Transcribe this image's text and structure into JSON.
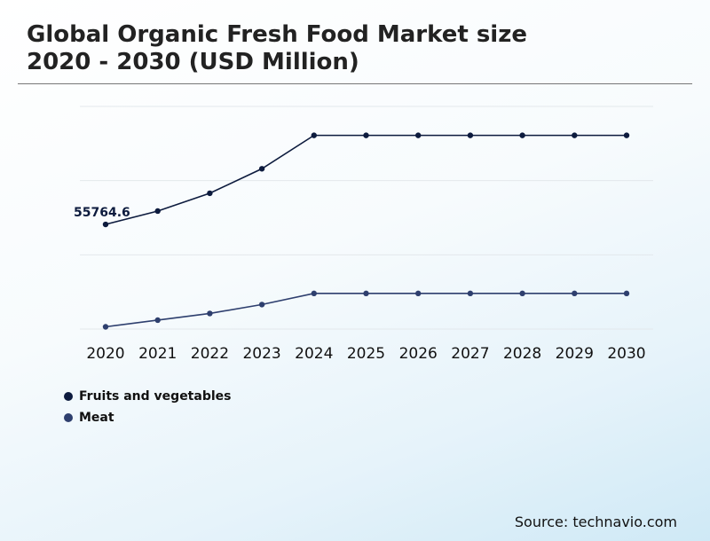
{
  "title": {
    "line1": "Global Organic Fresh Food Market size",
    "line2": "2020 - 2030 (USD Million)"
  },
  "source": "Source: technavio.com",
  "chart_data": {
    "type": "line",
    "title": "Global Organic Fresh Food Market size 2020 - 2030 (USD Million)",
    "x": [
      "2020",
      "2021",
      "2022",
      "2023",
      "2024",
      "2025",
      "2026",
      "2027",
      "2028",
      "2029",
      "2030"
    ],
    "xlabel": "",
    "ylabel": "",
    "ylim": [
      0,
      100
    ],
    "y_tick_labels_shown": false,
    "grid": "horizontal",
    "legend_position": "bottom-left",
    "series": [
      {
        "name": "Fruits and vegetables",
        "color": "#0d1b3e",
        "values": [
          47,
          53,
          61,
          72,
          87,
          87,
          87,
          87,
          87,
          87,
          87
        ]
      },
      {
        "name": "Meat",
        "color": "#2e3f6e",
        "values": [
          1,
          4,
          7,
          11,
          16,
          16,
          16,
          16,
          16,
          16,
          16
        ]
      }
    ],
    "annotations": [
      {
        "series": "Fruits and vegetables",
        "x": "2020",
        "label": "55764.6"
      }
    ]
  }
}
